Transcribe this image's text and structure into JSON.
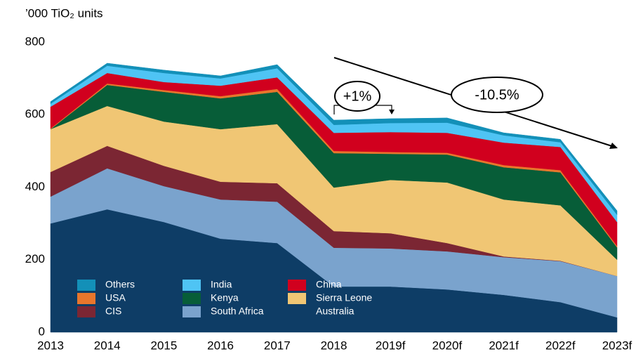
{
  "chart_data": {
    "type": "stacked_area",
    "y_label": "’000 TiO₂ units",
    "categories": [
      "2013",
      "2014",
      "2015",
      "2016",
      "2017",
      "2018",
      "2019f",
      "2020f",
      "2021f",
      "2022f",
      "2023f"
    ],
    "series": [
      {
        "name": "Australia",
        "color": "#0e3d66",
        "values": [
          300,
          339,
          304,
          258,
          246,
          126,
          126,
          118,
          103,
          83,
          41
        ]
      },
      {
        "name": "South Africa",
        "color": "#7aa3cd",
        "values": [
          74,
          113,
          99,
          108,
          114,
          107,
          105,
          105,
          104,
          113,
          114
        ]
      },
      {
        "name": "CIS",
        "color": "#7b2633",
        "values": [
          68,
          62,
          56,
          49,
          51,
          46,
          42,
          23,
          2,
          1,
          0
        ]
      },
      {
        "name": "Sierra Leone",
        "color": "#f0c674",
        "values": [
          118,
          110,
          122,
          145,
          163,
          120,
          147,
          167,
          157,
          153,
          45
        ]
      },
      {
        "name": "Kenya",
        "color": "#075d38",
        "values": [
          0,
          58,
          82,
          85,
          89,
          95,
          72,
          77,
          89,
          91,
          34
        ]
      },
      {
        "name": "USA",
        "color": "#e8762c",
        "values": [
          2,
          4,
          5,
          6,
          8,
          6,
          5,
          5,
          6,
          6,
          4
        ]
      },
      {
        "name": "China",
        "color": "#d1001e",
        "values": [
          60,
          29,
          22,
          29,
          32,
          50,
          55,
          55,
          62,
          64,
          66
        ]
      },
      {
        "name": "India",
        "color": "#4fc4f4",
        "values": [
          8,
          20,
          25,
          20,
          25,
          22,
          25,
          28,
          20,
          13,
          20
        ]
      },
      {
        "name": "Others",
        "color": "#1390b8",
        "values": [
          6,
          7,
          8,
          7,
          10,
          13,
          12,
          13,
          7,
          8,
          11
        ]
      }
    ],
    "ylim": [
      0,
      800
    ],
    "yticks": [
      0,
      200,
      400,
      600,
      800
    ],
    "annotations": [
      "+1%",
      "-10.5%"
    ]
  }
}
